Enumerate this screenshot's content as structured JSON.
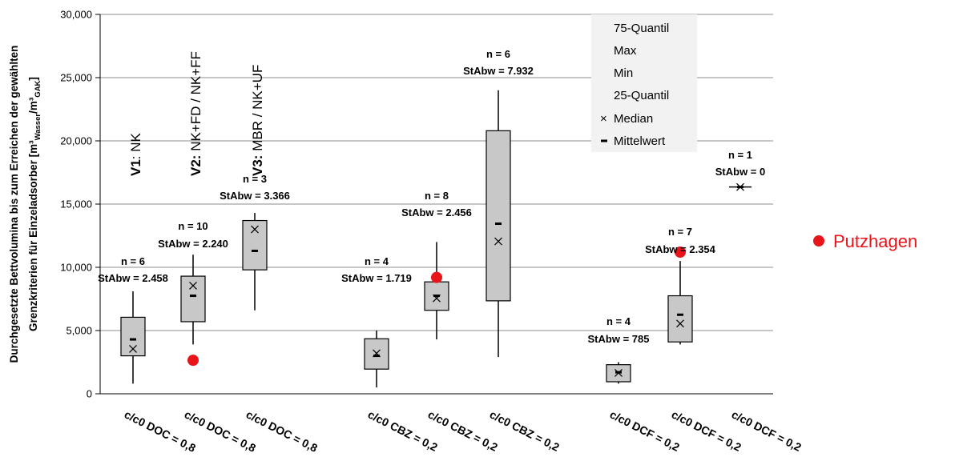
{
  "chart_data": {
    "type": "box",
    "ylabel_line1": "Durchgesetzte  Bettvolumina bis zum Erreichen der gewählten",
    "ylabel_line2": "Grenzkriterien für Einzeladsorber [m³",
    "ylabel_sub1": "Wasser",
    "ylabel_mid": "/m³",
    "ylabel_sub2": "GAK",
    "ylabel_end": "]",
    "ylim": [
      0,
      30000
    ],
    "yticks": [
      "0",
      "5,000",
      "10,000",
      "15,000",
      "20,000",
      "25,000",
      "30,000"
    ],
    "grid": true,
    "categories": [
      "c/c0 DOC = 0,8",
      "c/c0 DOC = 0,8",
      "c/c0 DOC = 0,8",
      "c/c0 CBZ = 0,2",
      "c/c0 CBZ = 0,2",
      "c/c0 CBZ = 0,2",
      "c/c0 DCF = 0,2",
      "c/c0 DCF = 0,2",
      "c/c0 DCF = 0,2"
    ],
    "boxes": [
      {
        "min": 800,
        "q1": 3000,
        "median": 3550,
        "q3": 6050,
        "max": 8100,
        "mean": 4300,
        "n_label": "n = 6",
        "sd_label": "StAbw = 2.458"
      },
      {
        "min": 3900,
        "q1": 5700,
        "median": 8550,
        "q3": 9300,
        "max": 11000,
        "mean": 7750,
        "n_label": "n = 10",
        "sd_label": "StAbw = 2.240"
      },
      {
        "min": 6600,
        "q1": 9800,
        "median": 13000,
        "q3": 13700,
        "max": 14300,
        "mean": 11300,
        "n_label": "n = 3",
        "sd_label": "StAbw = 3.366"
      },
      {
        "min": 500,
        "q1": 1950,
        "median": 3200,
        "q3": 4350,
        "max": 5000,
        "mean": 3000,
        "n_label": "n = 4",
        "sd_label": "StAbw = 1.719"
      },
      {
        "min": 4300,
        "q1": 6600,
        "median": 7550,
        "q3": 8850,
        "max": 12000,
        "mean": 7750,
        "n_label": "n = 8",
        "sd_label": "StAbw = 2.456"
      },
      {
        "min": 2900,
        "q1": 7350,
        "median": 12050,
        "q3": 20800,
        "max": 24000,
        "mean": 13450,
        "n_label": "n = 6",
        "sd_label": "StAbw = 7.932"
      },
      {
        "min": 800,
        "q1": 950,
        "median": 1650,
        "q3": 2300,
        "max": 2500,
        "mean": 1700,
        "n_label": "n = 4",
        "sd_label": "StAbw = 785"
      },
      {
        "min": 3900,
        "q1": 4100,
        "median": 5550,
        "q3": 7750,
        "max": 10500,
        "mean": 6250,
        "n_label": "n = 7",
        "sd_label": "StAbw = 2.354"
      },
      {
        "min": 16350,
        "q1": 16350,
        "median": 16350,
        "q3": 16350,
        "max": 16350,
        "mean": 16350,
        "n_label": "n = 1",
        "sd_label": "StAbw = 0"
      }
    ],
    "outliers": [
      {
        "box": 1,
        "value": 2650
      },
      {
        "box": 4,
        "value": 9200
      },
      {
        "box": 7,
        "value": 11200
      }
    ],
    "variants": [
      {
        "bold": "V1",
        "rest": ": NK"
      },
      {
        "bold": "V2:",
        "rest": " NK+FD / NK+FF"
      },
      {
        "bold": "V3:",
        "rest": " MBR / NK+UF"
      }
    ],
    "legend": [
      "75-Quantil",
      "Max",
      "Min",
      "25-Quantil",
      "Median",
      "Mittelwert"
    ],
    "legend_marker_median": "×",
    "legend_marker_mean": "–",
    "extra_legend": "Putzhagen",
    "colors": {
      "box_fill": "#c8c8c8",
      "outlier": "#e8141a",
      "grid": "#8c8c8c",
      "legend_bg": "#f2f2f2"
    }
  }
}
